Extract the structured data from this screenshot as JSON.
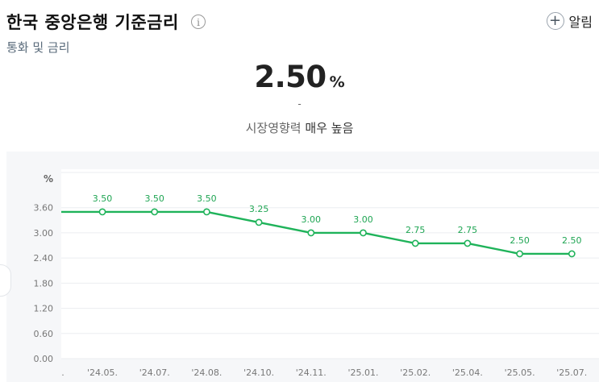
{
  "header": {
    "title": "한국 중앙은행 기준금리",
    "info_icon": "info-icon",
    "subtitle": "통화 및 금리",
    "alarm_label": "알림",
    "alarm_icon": "plus-circle-icon"
  },
  "summary": {
    "value": "2.50",
    "unit": "%",
    "change": "-",
    "impact_label": "시장영향력",
    "impact_level": "매우 높음"
  },
  "colors": {
    "line": "#1fb35a",
    "label": "#1fa553",
    "grid": "#ebedf0",
    "plot_bg": "#ffffff",
    "panel_bg": "#f6f7f9"
  },
  "chart_data": {
    "type": "line",
    "y_unit_label": "%",
    "yticks": [
      "0.00",
      "0.60",
      "1.20",
      "1.80",
      "2.40",
      "3.00",
      "3.60"
    ],
    "ylim": [
      0,
      4.44
    ],
    "grid": true,
    "x_tick_labels": [
      ".",
      "'24.05.",
      "'24.07.",
      "'24.08.",
      "'24.10.",
      "'24.11.",
      "'25.01.",
      "'25.02.",
      "'25.04.",
      "'25.05.",
      "'25.07."
    ],
    "points": [
      {
        "label": "'24.05.",
        "value": 3.5
      },
      {
        "label": "'24.07.",
        "value": 3.5
      },
      {
        "label": "'24.08.",
        "value": 3.5
      },
      {
        "label": "'24.10.",
        "value": 3.25
      },
      {
        "label": "'24.11.",
        "value": 3.0
      },
      {
        "label": "'25.01.",
        "value": 3.0
      },
      {
        "label": "'25.02.",
        "value": 2.75
      },
      {
        "label": "'25.04.",
        "value": 2.75
      },
      {
        "label": "'25.05.",
        "value": 2.5
      },
      {
        "label": "'25.07.",
        "value": 2.5
      }
    ],
    "data_labels": [
      "3.50",
      "3.50",
      "3.50",
      "3.25",
      "3.00",
      "3.00",
      "2.75",
      "2.75",
      "2.50",
      "2.50"
    ],
    "line_start_value": 3.5
  }
}
